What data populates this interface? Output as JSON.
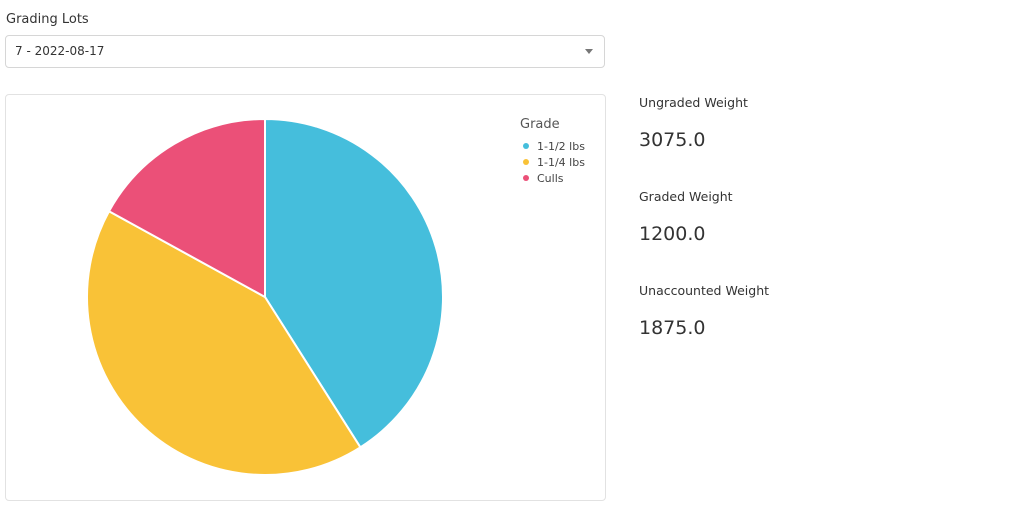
{
  "grading_lots": {
    "label": "Grading Lots",
    "selected": "7 - 2022-08-17"
  },
  "chart_data": {
    "type": "pie",
    "legend_title": "Grade",
    "legend_position": "top-right",
    "slices": [
      {
        "label": "1-1/2 lbs",
        "value": 0.41,
        "color": "#45bedc"
      },
      {
        "label": "1-1/4 lbs",
        "value": 0.42,
        "color": "#f9c237"
      },
      {
        "label": "Culls",
        "value": 0.17,
        "color": "#eb5078"
      }
    ]
  },
  "stats": [
    {
      "label": "Ungraded Weight",
      "value": "3075.0"
    },
    {
      "label": "Graded Weight",
      "value": "1200.0"
    },
    {
      "label": "Unaccounted Weight",
      "value": "1875.0"
    }
  ]
}
